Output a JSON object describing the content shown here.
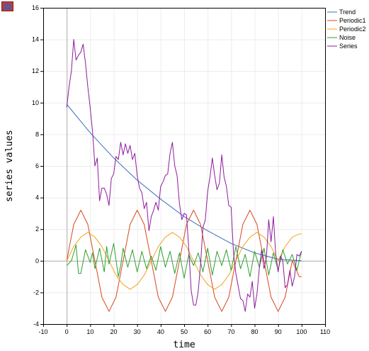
{
  "toolbar": {
    "menu_icon": "menu-icon"
  },
  "chart_data": {
    "type": "line",
    "xlabel": "time",
    "ylabel": "series values",
    "xlim": [
      -10,
      110
    ],
    "ylim": [
      -4,
      16
    ],
    "xticks": [
      -10,
      0,
      10,
      20,
      30,
      40,
      50,
      60,
      70,
      80,
      90,
      100,
      110
    ],
    "yticks": [
      -4,
      -2,
      0,
      2,
      4,
      6,
      8,
      10,
      12,
      14,
      16
    ],
    "grid": true,
    "legend_position": "top-right",
    "series": [
      {
        "name": "Trend",
        "color": "#3a6fc4",
        "x": [
          0,
          10,
          20,
          30,
          40,
          50,
          60,
          70,
          80,
          90,
          100
        ],
        "y": [
          9.9,
          8.1,
          6.5,
          5.1,
          3.9,
          2.8,
          1.9,
          1.1,
          0.5,
          0.1,
          0.0
        ]
      },
      {
        "name": "Periodic1",
        "color": "#d9461e",
        "x": [
          0,
          3,
          6,
          9,
          12,
          15,
          18,
          21,
          24,
          27,
          30,
          33,
          36,
          39,
          42,
          45,
          48,
          51,
          54,
          57,
          60,
          63,
          66,
          69,
          72,
          75,
          78,
          81,
          84,
          87,
          90,
          93,
          96,
          99,
          100
        ],
        "y": [
          0.0,
          2.3,
          3.2,
          2.3,
          0.0,
          -2.3,
          -3.2,
          -2.3,
          0.0,
          2.3,
          3.2,
          2.3,
          0.0,
          -2.3,
          -3.2,
          -2.3,
          0.0,
          2.3,
          3.2,
          2.3,
          0.0,
          -2.3,
          -3.2,
          -2.3,
          0.0,
          2.3,
          3.2,
          2.3,
          0.0,
          -2.3,
          -3.2,
          -2.3,
          0.0,
          -1.0,
          -1.0
        ]
      },
      {
        "name": "Periodic2",
        "color": "#f2a31b",
        "x": [
          0,
          3,
          6,
          9,
          12,
          15,
          18,
          21,
          24,
          27,
          30,
          33,
          36,
          39,
          42,
          45,
          48,
          51,
          54,
          57,
          60,
          63,
          66,
          69,
          72,
          75,
          78,
          81,
          84,
          87,
          90,
          93,
          96,
          99,
          100
        ],
        "y": [
          0.0,
          0.9,
          1.5,
          1.8,
          1.5,
          0.9,
          0.0,
          -0.9,
          -1.5,
          -1.8,
          -1.5,
          -0.9,
          0.0,
          0.9,
          1.5,
          1.8,
          1.5,
          0.9,
          0.0,
          -0.9,
          -1.5,
          -1.8,
          -1.5,
          -0.9,
          0.0,
          0.9,
          1.5,
          1.8,
          1.5,
          0.9,
          0.0,
          0.9,
          1.5,
          1.7,
          1.7
        ]
      },
      {
        "name": "Noise",
        "color": "#2ca02c",
        "x": [
          0,
          2,
          4,
          5,
          6,
          8,
          10,
          11,
          12,
          14,
          16,
          17,
          18,
          20,
          22,
          23,
          24,
          26,
          28,
          30,
          32,
          34,
          36,
          38,
          40,
          42,
          44,
          46,
          48,
          50,
          52,
          54,
          56,
          58,
          60,
          62,
          64,
          66,
          68,
          70,
          72,
          74,
          76,
          78,
          80,
          82,
          84,
          86,
          88,
          90,
          92,
          94,
          96,
          98,
          100
        ],
        "y": [
          -0.3,
          0.0,
          1.0,
          -0.8,
          -0.8,
          0.7,
          -0.1,
          0.5,
          -0.5,
          0.8,
          -0.7,
          0.9,
          -0.2,
          1.1,
          -1.0,
          -0.3,
          0.8,
          -0.4,
          0.7,
          -0.7,
          0.6,
          -0.5,
          0.3,
          -0.6,
          0.9,
          -0.4,
          0.6,
          -0.8,
          0.5,
          -1.1,
          0.4,
          -0.3,
          0.5,
          -0.7,
          0.8,
          -0.9,
          0.6,
          -0.3,
          0.7,
          -0.6,
          0.9,
          -0.5,
          0.4,
          -1.0,
          0.6,
          -0.4,
          0.8,
          -0.9,
          0.5,
          -0.6,
          0.7,
          -0.2,
          0.4,
          -0.6,
          0.6
        ]
      },
      {
        "name": "Series",
        "color": "#8e1b9e",
        "x": [
          0,
          1,
          2,
          3,
          4,
          5,
          6,
          7,
          8,
          9,
          10,
          11,
          12,
          13,
          14,
          15,
          16,
          17,
          18,
          19,
          20,
          21,
          22,
          23,
          24,
          25,
          26,
          27,
          28,
          29,
          30,
          31,
          32,
          33,
          34,
          35,
          36,
          37,
          38,
          39,
          40,
          41,
          42,
          43,
          44,
          45,
          46,
          47,
          48,
          49,
          50,
          51,
          52,
          53,
          54,
          55,
          56,
          57,
          58,
          59,
          60,
          61,
          62,
          63,
          64,
          65,
          66,
          67,
          68,
          69,
          70,
          71,
          72,
          73,
          74,
          75,
          76,
          77,
          78,
          79,
          80,
          81,
          82,
          83,
          84,
          85,
          86,
          87,
          88,
          89,
          90,
          91,
          92,
          93,
          94,
          95,
          96,
          97,
          98,
          99,
          100
        ],
        "y": [
          9.7,
          11.0,
          12.0,
          14.0,
          12.7,
          13.0,
          13.2,
          13.7,
          12.5,
          11.0,
          9.7,
          8.2,
          6.0,
          6.5,
          3.8,
          4.6,
          4.6,
          4.2,
          3.5,
          5.2,
          5.5,
          6.6,
          6.4,
          7.5,
          6.7,
          7.4,
          6.8,
          7.3,
          6.4,
          6.8,
          5.4,
          4.6,
          4.3,
          3.3,
          3.7,
          1.9,
          2.8,
          3.2,
          3.7,
          3.2,
          4.7,
          5.0,
          5.4,
          5.5,
          6.8,
          7.5,
          6.0,
          5.4,
          3.6,
          2.6,
          3.0,
          2.9,
          0.7,
          -1.9,
          -2.8,
          -2.8,
          -1.9,
          -0.2,
          2.1,
          2.6,
          4.4,
          5.3,
          6.5,
          5.4,
          4.5,
          4.9,
          6.7,
          5.3,
          4.7,
          3.5,
          3.4,
          0.5,
          -0.8,
          -1.6,
          -2.4,
          -2.5,
          -3.2,
          -2.1,
          -2.3,
          -1.3,
          -3.0,
          -2.1,
          -0.5,
          0.7,
          -0.5,
          0.2,
          2.6,
          1.2,
          2.8,
          0.4,
          -0.7,
          0.3,
          0.0,
          -1.7,
          -1.5,
          -0.6,
          -1.6,
          -1.0,
          0.4,
          0.3,
          0.6
        ]
      }
    ]
  }
}
